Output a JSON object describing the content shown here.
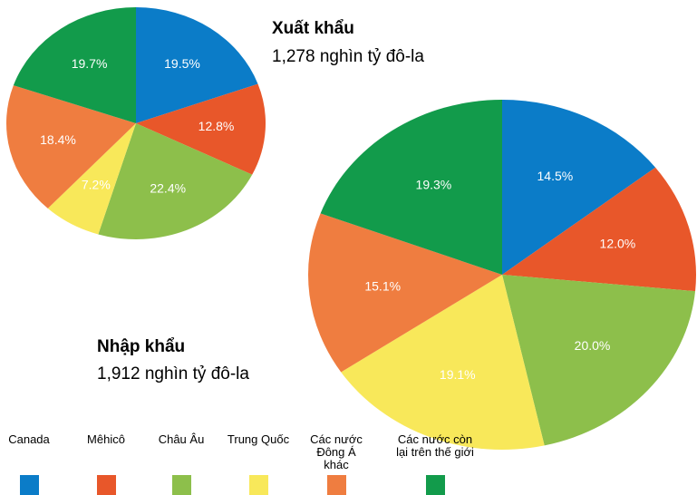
{
  "chart_data": [
    {
      "type": "pie",
      "title": "Xuất khẩu",
      "subtitle": "1,278 nghìn tỷ đô-la",
      "values": [
        19.5,
        12.8,
        22.4,
        7.2,
        18.4,
        19.7
      ],
      "value_labels": [
        "19.5%",
        "12.8%",
        "22.4%",
        "7.2%",
        "18.4%",
        "19.7%"
      ]
    },
    {
      "type": "pie",
      "title": "Nhập khẩu",
      "subtitle": "1,912 nghìn tỷ đô-la",
      "values": [
        14.5,
        12.0,
        20.0,
        19.1,
        15.1,
        19.3
      ],
      "value_labels": [
        "14.5%",
        "12.0%",
        "20.0%",
        "19.1%",
        "15.1%",
        "19.3%"
      ]
    }
  ],
  "legend": {
    "categories": [
      "Canada",
      "Mêhicô",
      "Châu Âu",
      "Trung Quốc",
      "Các nước Đông Á khác",
      "Các nước còn lại trên thế giới"
    ],
    "colors": [
      "#0b7cc8",
      "#e8572a",
      "#8dbf4b",
      "#f8e85a",
      "#ef7d40",
      "#129b4b"
    ]
  }
}
